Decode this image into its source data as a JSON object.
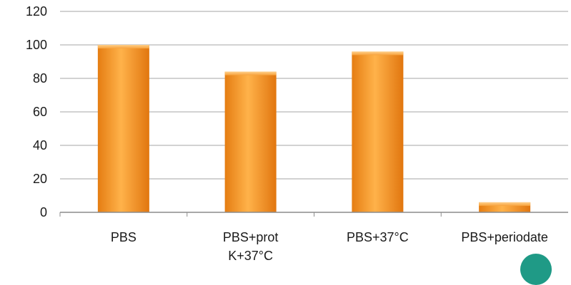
{
  "chart_data": {
    "type": "bar",
    "title": "",
    "xlabel": "",
    "ylabel": "",
    "ylim": [
      0,
      120
    ],
    "yticks": [
      0,
      20,
      40,
      60,
      80,
      100,
      120
    ],
    "grid": true,
    "categories": [
      [
        "PBS"
      ],
      [
        "PBS+prot",
        "K+37°C"
      ],
      [
        "PBS+37°C"
      ],
      [
        "PBS+periodate"
      ]
    ],
    "values": [
      100,
      84,
      96,
      6
    ],
    "bar_color": "#f59a2a"
  }
}
